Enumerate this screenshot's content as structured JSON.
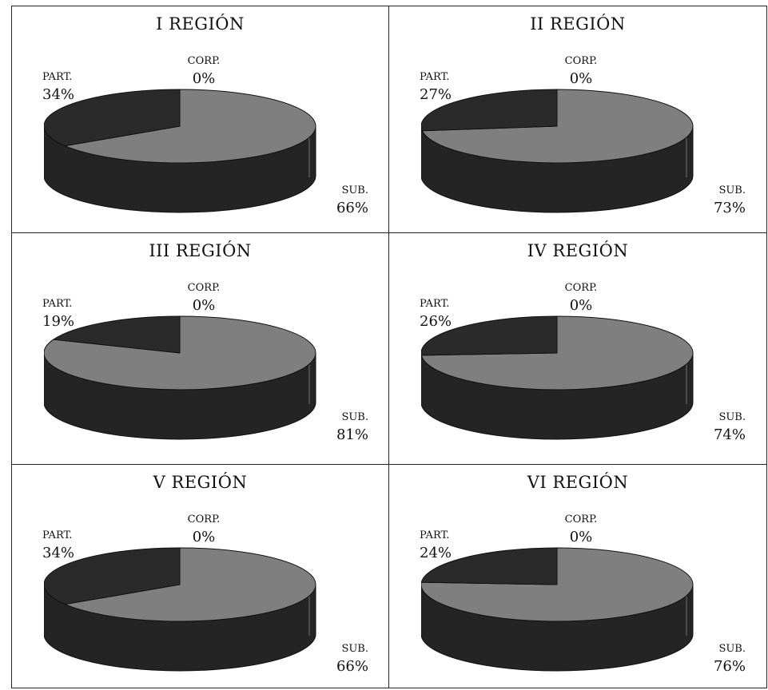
{
  "chart_data": [
    {
      "type": "pie",
      "title": "I REGIÓN",
      "labels": [
        "CORP.",
        "SUB.",
        "PART."
      ],
      "values": [
        0,
        66,
        34
      ],
      "value_labels": [
        "0%",
        "66%",
        "34%"
      ]
    },
    {
      "type": "pie",
      "title": "II REGIÓN",
      "labels": [
        "CORP.",
        "SUB.",
        "PART."
      ],
      "values": [
        0,
        73,
        27
      ],
      "value_labels": [
        "0%",
        "73%",
        "27%"
      ]
    },
    {
      "type": "pie",
      "title": "III REGIÓN",
      "labels": [
        "CORP.",
        "SUB.",
        "PART."
      ],
      "values": [
        0,
        81,
        19
      ],
      "value_labels": [
        "0%",
        "81%",
        "19%"
      ]
    },
    {
      "type": "pie",
      "title": "IV REGIÓN",
      "labels": [
        "CORP.",
        "SUB.",
        "PART."
      ],
      "values": [
        0,
        74,
        26
      ],
      "value_labels": [
        "0%",
        "74%",
        "26%"
      ]
    },
    {
      "type": "pie",
      "title": "V REGIÓN",
      "labels": [
        "CORP.",
        "SUB.",
        "PART."
      ],
      "values": [
        0,
        66,
        34
      ],
      "value_labels": [
        "0%",
        "66%",
        "34%"
      ]
    },
    {
      "type": "pie",
      "title": "VI REGIÓN",
      "labels": [
        "CORP.",
        "SUB.",
        "PART."
      ],
      "values": [
        0,
        76,
        24
      ],
      "value_labels": [
        "0%",
        "76%",
        "24%"
      ]
    }
  ],
  "colors": {
    "sub": "#7f7f7f",
    "part": "#2a2a2a",
    "side": "#242424",
    "edge": "#111111"
  }
}
